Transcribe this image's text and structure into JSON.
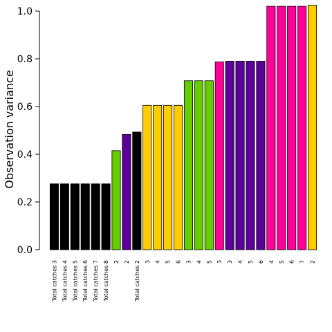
{
  "chart_data": {
    "type": "bar",
    "ylabel": "Observation variance",
    "xlabel": "",
    "title": "",
    "ylim": [
      0,
      1.0
    ],
    "yticks": [
      "0.0",
      "0.2",
      "0.4",
      "0.6",
      "0.8",
      "1.0"
    ],
    "grid": false,
    "categories": [
      "Total catches 3",
      "Total catches 4",
      "Total catches 5",
      "Total catches 6",
      "Total catches 7",
      "Total catches 8",
      "2",
      "2",
      "Total catches 2",
      "3",
      "4",
      "5",
      "6",
      "3",
      "4",
      "5",
      "3",
      "3",
      "4",
      "5",
      "6",
      "4",
      "5",
      "6",
      "7",
      "2"
    ],
    "values": [
      0.276,
      0.276,
      0.276,
      0.276,
      0.276,
      0.276,
      0.415,
      0.483,
      0.493,
      0.605,
      0.605,
      0.605,
      0.605,
      0.708,
      0.708,
      0.708,
      0.787,
      0.79,
      0.79,
      0.79,
      0.79,
      1.02,
      1.02,
      1.02,
      1.02,
      1.025
    ],
    "colors": [
      "#000000",
      "#000000",
      "#000000",
      "#000000",
      "#000000",
      "#000000",
      "#66CC00",
      "#5C0099",
      "#000000",
      "#FFCC00",
      "#FFCC00",
      "#FFCC00",
      "#FFCC00",
      "#66CC00",
      "#66CC00",
      "#66CC00",
      "#FF0099",
      "#5C0099",
      "#5C0099",
      "#5C0099",
      "#5C0099",
      "#FF0099",
      "#FF0099",
      "#FF0099",
      "#FF0099",
      "#FFCC00"
    ]
  }
}
